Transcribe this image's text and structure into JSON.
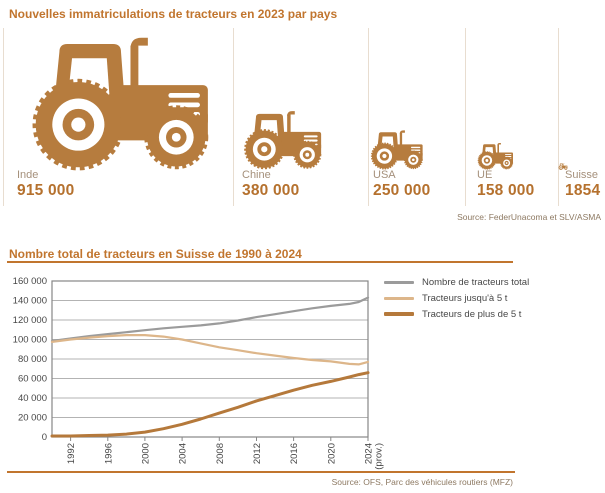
{
  "colors": {
    "accent_brown": "#c1752e",
    "tractor_brown": "#b67c3e",
    "value_brown": "#b5712e",
    "label_muted": "#a5907b",
    "source_gray": "#8d7962",
    "divider": "#e8ddd0",
    "axis_text": "#474747",
    "grid_line": "#b3b3b3",
    "plot_border": "#878787"
  },
  "top_chart": {
    "title": "Nouvelles immatriculations de tracteurs en 2023 par pays",
    "source": "Source: FederUnacoma et SLV/ASMA",
    "countries": [
      {
        "name": "Inde",
        "value": "915 000"
      },
      {
        "name": "Chine",
        "value": "380 000"
      },
      {
        "name": "USA",
        "value": "250 000"
      },
      {
        "name": "UE",
        "value": "158 000"
      },
      {
        "name": "Suisse",
        "value": "1854"
      }
    ]
  },
  "bottom_chart": {
    "title": "Nombre total de tracteurs en Suisse de 1990 à 2024",
    "source": "Source: OFS, Parc des véhicules routiers (MFZ)"
  },
  "chart_data": [
    {
      "type": "pictogram-bar",
      "title": "Nouvelles immatriculations de tracteurs en 2023 par pays",
      "categories": [
        "Inde",
        "Chine",
        "USA",
        "UE",
        "Suisse"
      ],
      "values": [
        915000,
        380000,
        250000,
        158000,
        1854
      ],
      "value_labels": [
        "915 000",
        "380 000",
        "250 000",
        "158 000",
        "1854"
      ],
      "source": "Source: FederUnacoma et SLV/ASMA"
    },
    {
      "type": "line",
      "title": "Nombre total de tracteurs en Suisse de 1990 à 2024",
      "x": [
        1990,
        1992,
        1994,
        1996,
        1998,
        2000,
        2002,
        2004,
        2006,
        2008,
        2010,
        2012,
        2014,
        2016,
        2018,
        2020,
        2022,
        2023,
        2024
      ],
      "series": [
        {
          "name": "Nombre de tracteurs total",
          "color": "#9b9b9b",
          "width": 2.2,
          "values": [
            98500,
            101000,
            103500,
            105500,
            107500,
            109500,
            111500,
            113000,
            114500,
            116500,
            119500,
            123000,
            126000,
            129000,
            132000,
            134500,
            136500,
            138500,
            143000
          ]
        },
        {
          "name": "Tracteurs jusqu'à 5 t",
          "color": "#ddb68a",
          "width": 2.2,
          "values": [
            97500,
            100000,
            102000,
            103500,
            104500,
            104500,
            103000,
            100000,
            96000,
            92000,
            89000,
            86000,
            83500,
            81000,
            79000,
            77500,
            75000,
            74500,
            77000
          ]
        },
        {
          "name": "Tracteurs de plus de 5 t",
          "color": "#b5793b",
          "width": 3,
          "values": [
            1000,
            1000,
            1500,
            2000,
            3000,
            5000,
            8500,
            13000,
            18500,
            24500,
            30500,
            37000,
            42500,
            48000,
            53000,
            57000,
            61500,
            64000,
            66000
          ]
        }
      ],
      "xlim": [
        1990,
        2024
      ],
      "ylim": [
        0,
        160000
      ],
      "xticks": [
        1992,
        1996,
        2000,
        2004,
        2008,
        2012,
        2016,
        2020,
        2024
      ],
      "xtick_labels": [
        [
          "1992"
        ],
        [
          "1996"
        ],
        [
          "2000"
        ],
        [
          "2004"
        ],
        [
          "2008"
        ],
        [
          "2012"
        ],
        [
          "2016"
        ],
        [
          "2020"
        ],
        [
          "2024",
          "(prov.)"
        ]
      ],
      "ytick_labels": [
        "0",
        "20 000",
        "40 000",
        "60 000",
        "80 000",
        "100 000",
        "120 000",
        "140 000",
        "160 000"
      ],
      "grid": "horizontal",
      "legend_position": "right",
      "source": "Source: OFS, Parc des véhicules routiers (MFZ)"
    }
  ]
}
